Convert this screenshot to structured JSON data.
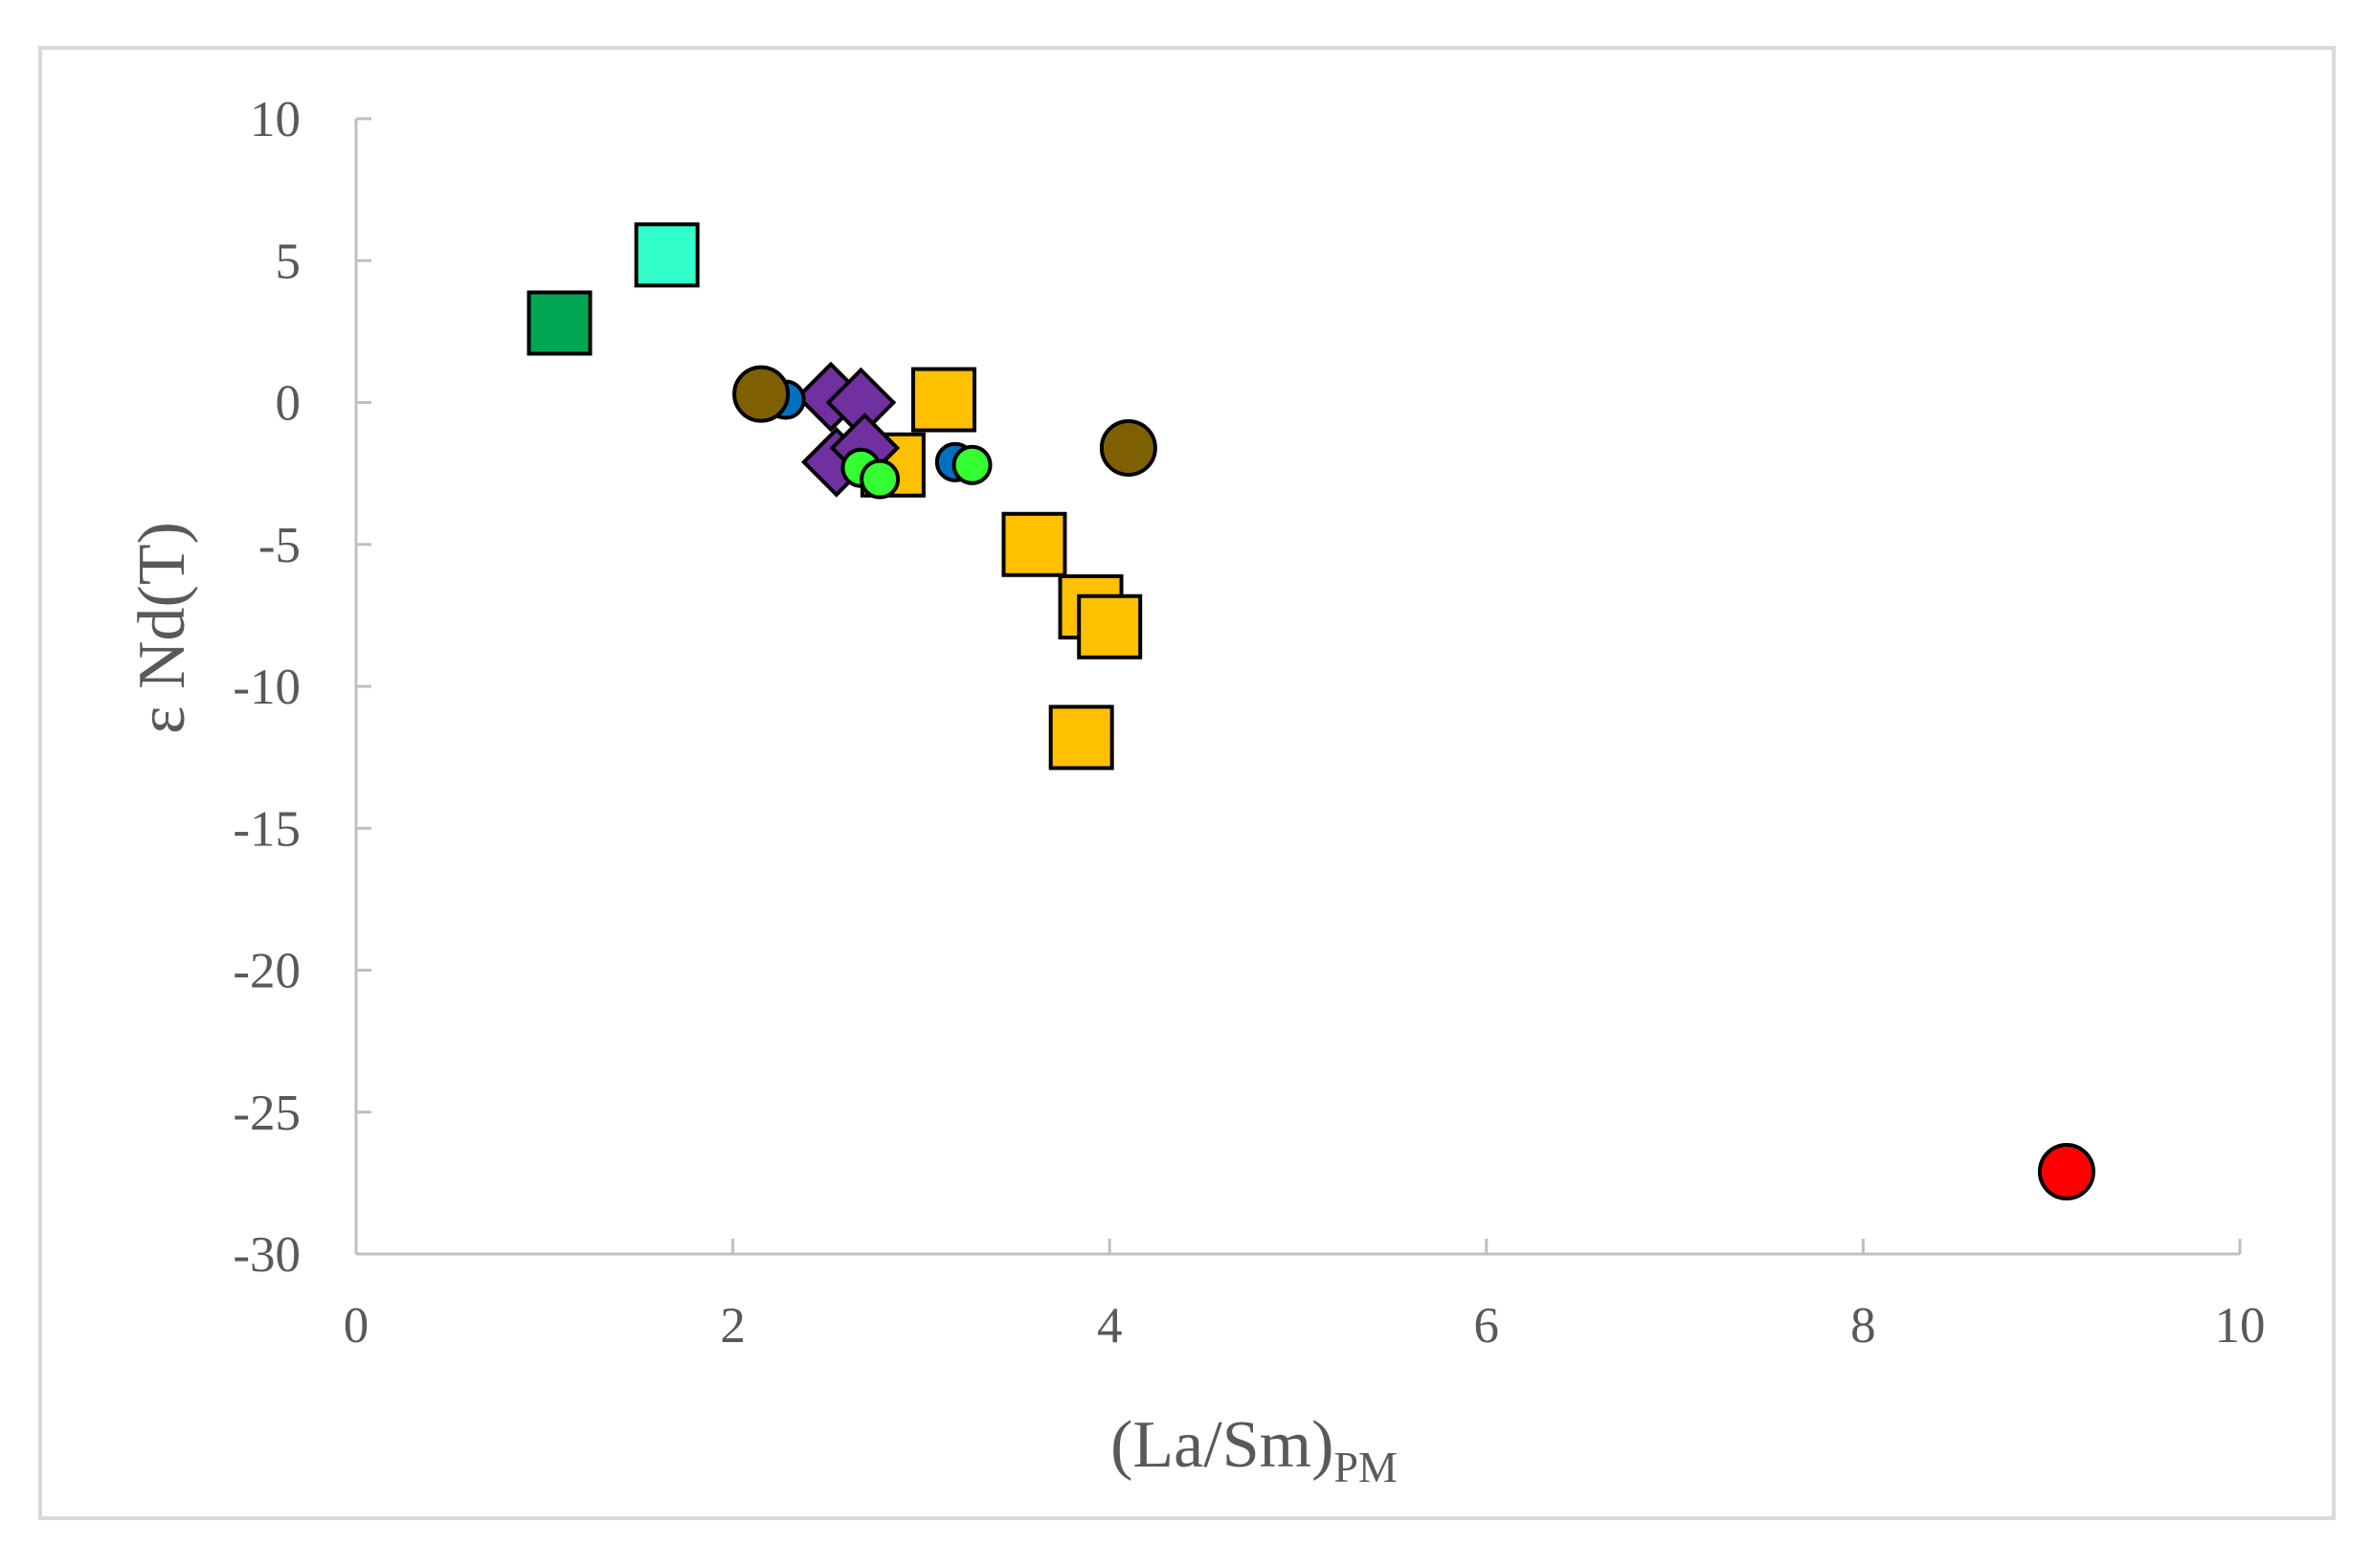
{
  "chart_data": {
    "type": "scatter",
    "xlabel": "(La/Sm)",
    "xlabel_subscript": "PM",
    "ylabel": "ε Nd(T)",
    "xlim": [
      0,
      10
    ],
    "ylim": [
      -30,
      10
    ],
    "x_ticks": [
      "0",
      "2",
      "4",
      "6",
      "8",
      "10"
    ],
    "y_ticks": [
      "10",
      "5",
      "0",
      "-5",
      "-10",
      "-15",
      "-20",
      "-25",
      "-30"
    ],
    "grid": false,
    "legend": "none",
    "series": [
      {
        "marker": "square",
        "color": "#00a651",
        "points": [
          [
            1.08,
            2.8
          ]
        ]
      },
      {
        "marker": "square",
        "color": "#33ffcc",
        "points": [
          [
            1.65,
            5.2
          ]
        ]
      },
      {
        "marker": "square",
        "color": "#ffc000",
        "points": [
          [
            3.12,
            0.1
          ],
          [
            2.85,
            -2.2
          ],
          [
            3.6,
            -5.0
          ],
          [
            3.9,
            -7.2
          ],
          [
            4.0,
            -7.9
          ],
          [
            3.85,
            -11.8
          ]
        ]
      },
      {
        "marker": "diamond",
        "color": "#7030a0",
        "points": [
          [
            2.52,
            0.2
          ],
          [
            2.68,
            0.0
          ],
          [
            2.55,
            -2.1
          ],
          [
            2.7,
            -1.6
          ]
        ]
      },
      {
        "marker": "circle-small",
        "color": "#0070c0",
        "points": [
          [
            2.28,
            0.1
          ],
          [
            3.18,
            -2.1
          ]
        ]
      },
      {
        "marker": "circle-small",
        "color": "#33ff33",
        "points": [
          [
            2.68,
            -2.3
          ],
          [
            2.78,
            -2.7
          ],
          [
            3.27,
            -2.2
          ]
        ]
      },
      {
        "marker": "circle",
        "color": "#7f6000",
        "points": [
          [
            2.15,
            0.3
          ],
          [
            4.1,
            -1.6
          ]
        ]
      },
      {
        "marker": "circle",
        "color": "#ff0000",
        "points": [
          [
            9.08,
            -27.1
          ]
        ]
      }
    ]
  }
}
